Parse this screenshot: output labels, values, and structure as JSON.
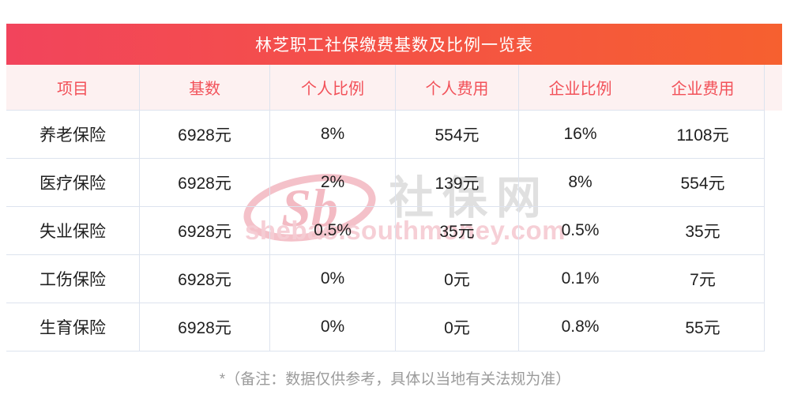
{
  "title": "林芝职工社保缴费基数及比例一览表",
  "table": {
    "headers": [
      "项目",
      "基数",
      "个人比例",
      "个人费用",
      "企业比例",
      "企业费用"
    ],
    "rows": [
      [
        "养老保险",
        "6928元",
        "8%",
        "554元",
        "16%",
        "1108元"
      ],
      [
        "医疗保险",
        "6928元",
        "2%",
        "139元",
        "8%",
        "554元"
      ],
      [
        "失业保险",
        "6928元",
        "0.5%",
        "35元",
        "0.5%",
        "35元"
      ],
      [
        "工伤保险",
        "6928元",
        "0%",
        "0元",
        "0.1%",
        "7元"
      ],
      [
        "生育保险",
        "6928元",
        "0%",
        "0元",
        "0.8%",
        "55元"
      ]
    ]
  },
  "footnote": "*（备注：数据仅供参考，具体以当地有关法规为准）",
  "watermark": {
    "logo": "Sb",
    "site_name": "社保网",
    "url": "shebao.southmoney.com"
  },
  "colors": {
    "title_grad_left": "#f2445c",
    "title_grad_right": "#f6602f",
    "header_bg": "#fdf1f1",
    "header_text": "#f25159",
    "divider": "#dde3ee",
    "body_text": "#1f1f1f",
    "footnote": "#9b9b9b",
    "wm_pink": "#f3bac3",
    "wm_pink_text": "#f6cdd4",
    "wm_gray": "#dcdcdc"
  }
}
